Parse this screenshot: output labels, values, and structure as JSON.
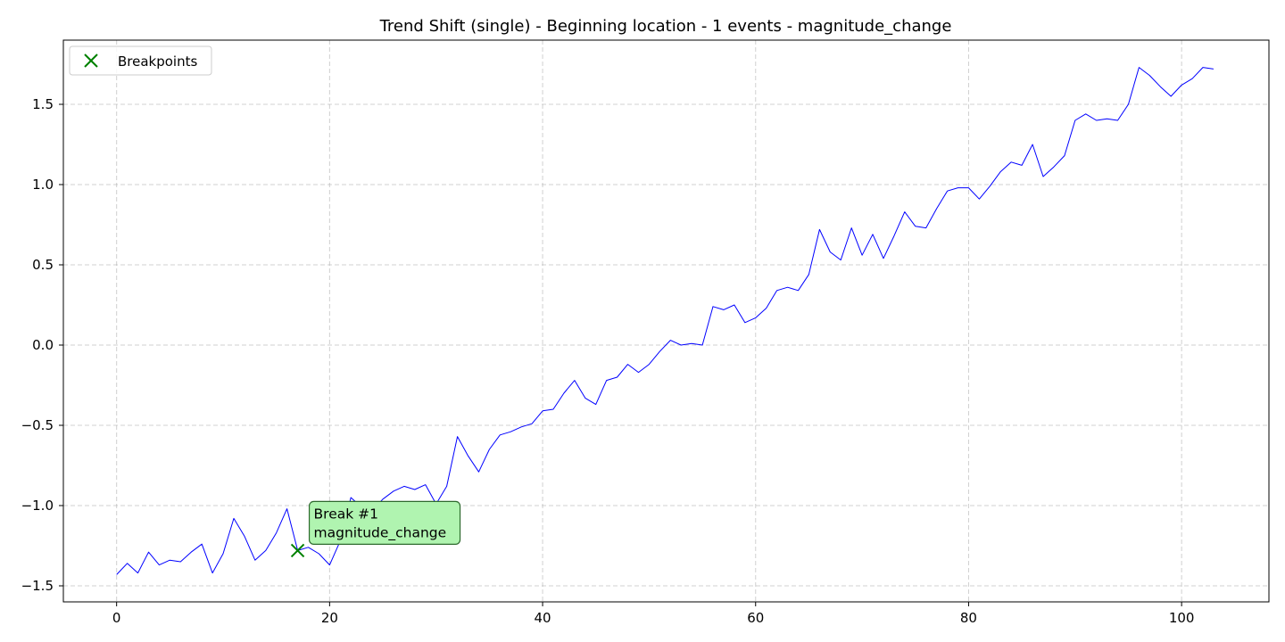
{
  "chart_data": {
    "type": "line",
    "title": "Trend Shift (single) - Beginning location - 1 events - magnitude_change",
    "xlabel": "",
    "ylabel": "",
    "xlim": [
      -5,
      108.2
    ],
    "ylim": [
      -1.6,
      1.9
    ],
    "xticks": [
      0,
      20,
      40,
      60,
      80,
      100
    ],
    "yticks": [
      -1.5,
      -1.0,
      -0.5,
      0.0,
      0.5,
      1.0,
      1.5
    ],
    "xtick_labels": [
      "0",
      "20",
      "40",
      "60",
      "80",
      "100"
    ],
    "ytick_labels": [
      "−1.5",
      "−1.0",
      "−0.5",
      "0.0",
      "0.5",
      "1.0",
      "1.5"
    ],
    "grid": true,
    "legend_position": "top-left",
    "series": [
      {
        "color": "#0000ff",
        "x": [
          0,
          1,
          2,
          3,
          4,
          5,
          6,
          7,
          8,
          9,
          10,
          11,
          12,
          13,
          14,
          15,
          16,
          17,
          18,
          19,
          20,
          21,
          22,
          23,
          24,
          25,
          26,
          27,
          28,
          29,
          30,
          31,
          32,
          33,
          34,
          35,
          36,
          37,
          38,
          39,
          40,
          41,
          42,
          43,
          44,
          45,
          46,
          47,
          48,
          49,
          50,
          51,
          52,
          53,
          54,
          55,
          56,
          57,
          58,
          59,
          60,
          61,
          62,
          63,
          64,
          65,
          66,
          67,
          68,
          69,
          70,
          71,
          72,
          73,
          74,
          75,
          76,
          77,
          78,
          79,
          80,
          81,
          82,
          83,
          84,
          85,
          86,
          87,
          88,
          89,
          90,
          91,
          92,
          93,
          94,
          95,
          96,
          97,
          98,
          99,
          100,
          101,
          102,
          103
        ],
        "y": [
          -1.43,
          -1.36,
          -1.42,
          -1.29,
          -1.37,
          -1.34,
          -1.35,
          -1.29,
          -1.24,
          -1.42,
          -1.3,
          -1.08,
          -1.19,
          -1.34,
          -1.28,
          -1.17,
          -1.02,
          -1.28,
          -1.26,
          -1.3,
          -1.37,
          -1.22,
          -0.95,
          -1.01,
          -1.03,
          -0.96,
          -0.91,
          -0.88,
          -0.9,
          -0.87,
          -0.99,
          -0.88,
          -0.57,
          -0.69,
          -0.79,
          -0.65,
          -0.56,
          -0.54,
          -0.51,
          -0.49,
          -0.41,
          -0.4,
          -0.3,
          -0.22,
          -0.33,
          -0.37,
          -0.22,
          -0.2,
          -0.12,
          -0.17,
          -0.12,
          -0.04,
          0.03,
          0.0,
          0.01,
          0.0,
          0.24,
          0.22,
          0.25,
          0.14,
          0.17,
          0.23,
          0.34,
          0.36,
          0.34,
          0.44,
          0.72,
          0.58,
          0.53,
          0.73,
          0.56,
          0.69,
          0.54,
          0.68,
          0.83,
          0.74,
          0.73,
          0.85,
          0.96,
          0.98,
          0.98,
          0.91,
          0.99,
          1.08,
          1.14,
          1.12,
          1.25,
          1.05,
          1.11,
          1.18,
          1.4,
          1.44,
          1.4,
          1.41,
          1.4,
          1.5,
          1.73,
          1.68,
          1.61,
          1.55,
          1.62,
          1.66,
          1.73,
          1.72
        ]
      }
    ],
    "breakpoints": {
      "name": "Breakpoints",
      "color": "#008000",
      "points": [
        {
          "x": 17,
          "y": -1.28
        }
      ]
    },
    "annotations": [
      {
        "line1": "Break #1",
        "line2": "magnitude_change",
        "x": 17,
        "y": -1.28,
        "fill": "#b0f4b0",
        "stroke": "#2e6a2e"
      }
    ]
  }
}
